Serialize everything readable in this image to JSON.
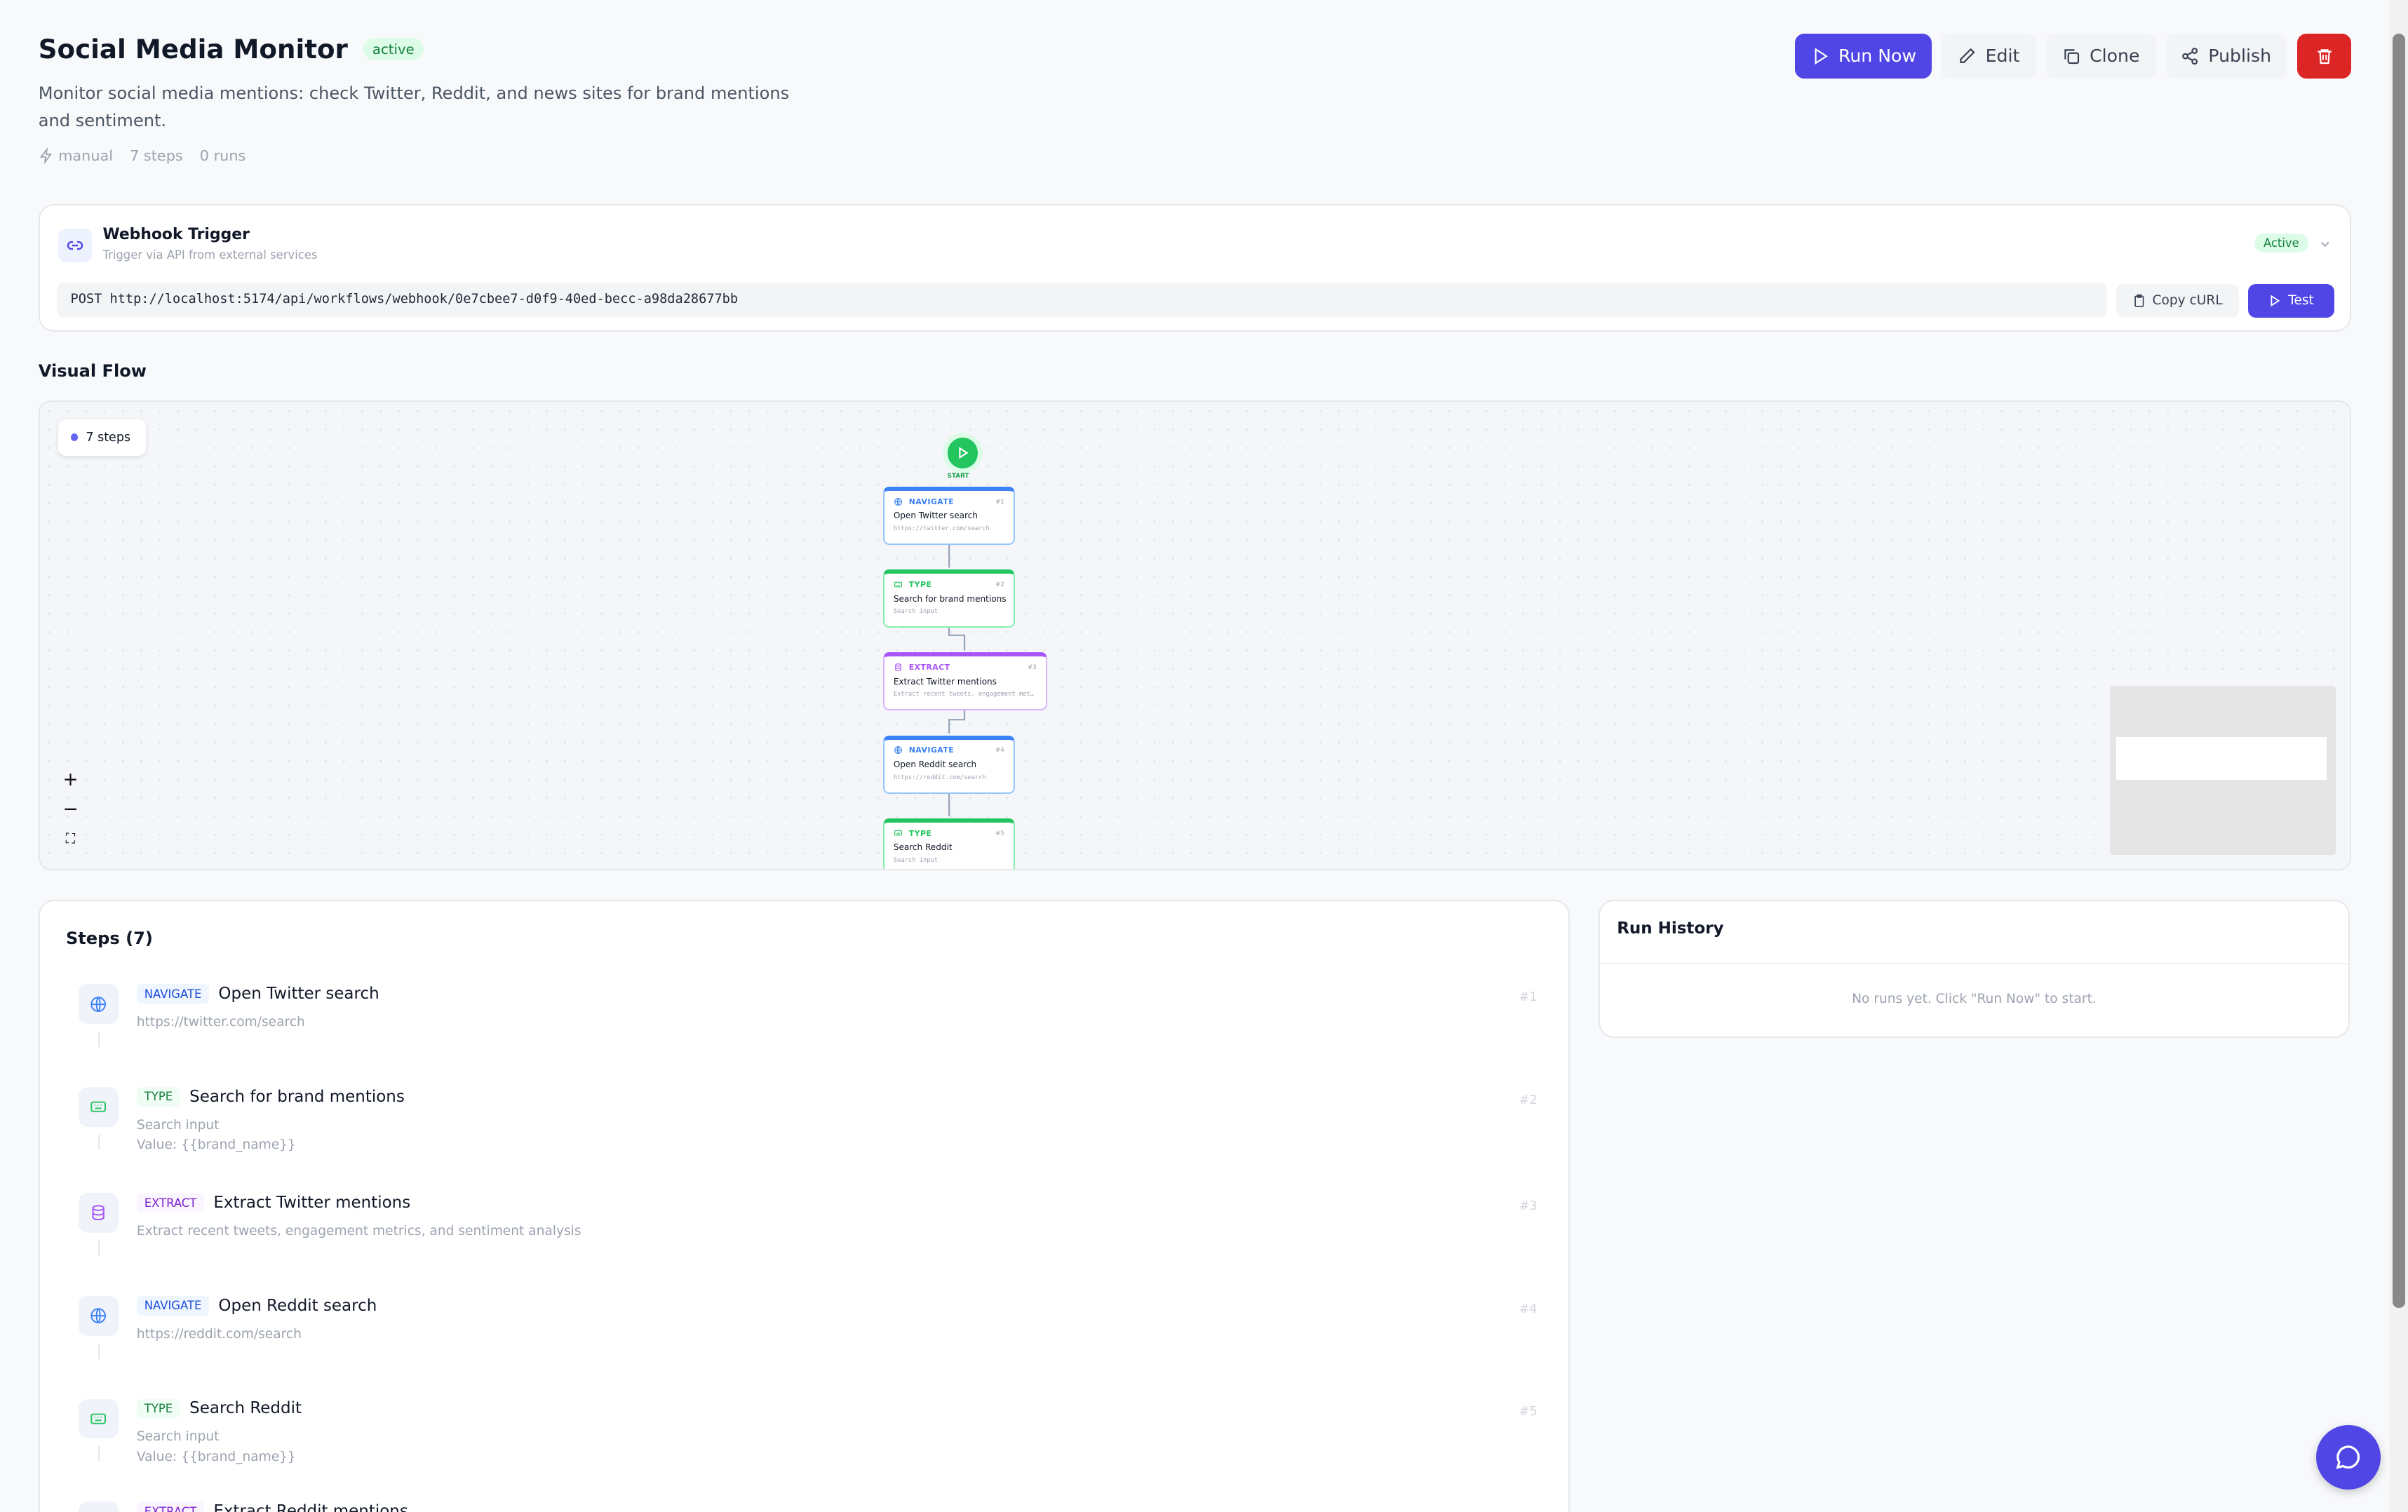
{
  "header": {
    "title": "Social Media Monitor",
    "status": "active",
    "description": "Monitor social media mentions: check Twitter, Reddit, and news sites for brand mentions and sentiment.",
    "trigger_type": "manual",
    "steps_count": "7 steps",
    "runs_count": "0 runs"
  },
  "actions": {
    "run_now": "Run Now",
    "edit": "Edit",
    "clone": "Clone",
    "publish": "Publish",
    "delete_icon": "trash-icon"
  },
  "webhook": {
    "title": "Webhook Trigger",
    "subtitle": "Trigger via API from external services",
    "status": "Active",
    "method": "POST",
    "url": "http://localhost:5174/api/workflows/webhook/0e7cbee7-d0f9-40ed-becc-a98da28677bb",
    "copy_label": "Copy cURL",
    "test_label": "Test"
  },
  "visual_flow": {
    "title": "Visual Flow",
    "steps_pill": "7 steps",
    "start_label": "START",
    "nodes": [
      {
        "type": "NAVIGATE",
        "num": "#1",
        "title": "Open Twitter search",
        "sub": "https://twitter.com/search"
      },
      {
        "type": "TYPE",
        "num": "#2",
        "title": "Search for brand mentions",
        "sub": "Search input"
      },
      {
        "type": "EXTRACT",
        "num": "#3",
        "title": "Extract Twitter mentions",
        "sub": "Extract recent tweets, engagement metri…"
      },
      {
        "type": "NAVIGATE",
        "num": "#4",
        "title": "Open Reddit search",
        "sub": "https://reddit.com/search"
      },
      {
        "type": "TYPE",
        "num": "#5",
        "title": "Search Reddit",
        "sub": "Search input"
      }
    ]
  },
  "steps": {
    "title": "Steps (7)",
    "items": [
      {
        "type": "NAVIGATE",
        "title": "Open Twitter search",
        "sub": "https://twitter.com/search",
        "value": "",
        "num": "#1"
      },
      {
        "type": "TYPE",
        "title": "Search for brand mentions",
        "sub": "Search input",
        "value": "Value: {{brand_name}}",
        "num": "#2"
      },
      {
        "type": "EXTRACT",
        "title": "Extract Twitter mentions",
        "sub": "Extract recent tweets, engagement metrics, and sentiment analysis",
        "value": "",
        "num": "#3"
      },
      {
        "type": "NAVIGATE",
        "title": "Open Reddit search",
        "sub": "https://reddit.com/search",
        "value": "",
        "num": "#4"
      },
      {
        "type": "TYPE",
        "title": "Search Reddit",
        "sub": "Search input",
        "value": "Value: {{brand_name}}",
        "num": "#5"
      },
      {
        "type": "EXTRACT",
        "title": "Extract Reddit mentions",
        "sub": "",
        "value": "",
        "num": ""
      }
    ]
  },
  "run_history": {
    "title": "Run History",
    "empty": "No runs yet. Click \"Run Now\" to start."
  },
  "colors": {
    "primary": "#4f46e5",
    "danger": "#dc2626",
    "navigate": "#3b82f6",
    "type": "#22c55e",
    "extract": "#a855f7",
    "start": "#22c55e"
  }
}
